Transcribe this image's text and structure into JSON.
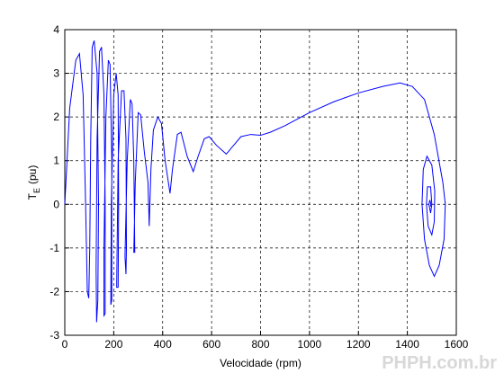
{
  "chart_data": {
    "type": "line",
    "xlabel": "Velocidade (rpm)",
    "ylabel": {
      "main": "T",
      "sub": "E",
      "rest": "(pu)"
    },
    "watermark": "PHPH.com.br",
    "xlim": [
      0,
      1600
    ],
    "xticks": [
      0,
      200,
      400,
      600,
      800,
      1000,
      1200,
      1400,
      1600
    ],
    "ylim": [
      -3,
      4
    ],
    "yticks": [
      -3,
      -2,
      -1,
      0,
      1,
      2,
      3,
      4
    ],
    "grid": true,
    "series": [
      {
        "color": "#0000ff",
        "x": [
          0,
          20,
          45,
          60,
          75,
          85,
          92,
          98,
          102,
          106,
          112,
          120,
          132,
          138,
          135,
          130,
          128,
          132,
          142,
          150,
          160,
          165,
          165,
          160,
          160,
          168,
          178,
          185,
          192,
          192,
          188,
          190,
          200,
          210,
          218,
          220,
          218,
          212,
          218,
          232,
          242,
          250,
          252,
          250,
          246,
          255,
          268,
          275,
          282,
          286,
          282,
          288,
          300,
          310,
          325,
          340,
          345,
          352,
          362,
          380,
          395,
          410,
          430,
          440,
          460,
          475,
          500,
          525,
          545,
          570,
          590,
          620,
          660,
          690,
          720,
          760,
          800,
          840,
          900,
          1000,
          1100,
          1200,
          1300,
          1370,
          1420,
          1470,
          1510,
          1545,
          1555,
          1550,
          1530,
          1510,
          1490,
          1470,
          1460,
          1465,
          1480,
          1500,
          1512,
          1510,
          1500,
          1485,
          1478,
          1482,
          1495,
          1500,
          1495,
          1488,
          1492,
          1496,
          1494
        ],
        "values": [
          0,
          2.2,
          3.3,
          3.45,
          2.5,
          0,
          -2.0,
          -2.15,
          -1,
          1.5,
          3.6,
          3.75,
          3.0,
          0,
          -2.2,
          -2.7,
          -1.5,
          1.5,
          3.5,
          3.6,
          2.5,
          0,
          -2.5,
          -2.55,
          -1,
          2,
          3.3,
          3.2,
          1,
          -2.2,
          -2.3,
          0,
          2.5,
          3.0,
          2.5,
          0,
          -1.9,
          -1.9,
          1,
          2.6,
          2.6,
          1.5,
          -1.0,
          -1.6,
          -1.2,
          1,
          2.4,
          2.3,
          1,
          -1.1,
          -1.1,
          0.5,
          2.1,
          2.05,
          1.2,
          0.5,
          -0.5,
          0.8,
          1.7,
          2.0,
          1.85,
          1.0,
          0.25,
          0.8,
          1.6,
          1.65,
          1.1,
          0.75,
          1.1,
          1.5,
          1.55,
          1.35,
          1.15,
          1.35,
          1.55,
          1.6,
          1.58,
          1.65,
          1.8,
          2.1,
          2.35,
          2.55,
          2.7,
          2.78,
          2.7,
          2.4,
          1.6,
          0.5,
          0,
          -0.8,
          -1.4,
          -1.65,
          -1.4,
          -0.8,
          0,
          0.8,
          1.1,
          0.9,
          0.3,
          -0.4,
          -0.7,
          -0.5,
          0,
          0.4,
          0.4,
          0,
          -0.2,
          0,
          0.1,
          0,
          -0.05
        ]
      }
    ]
  }
}
